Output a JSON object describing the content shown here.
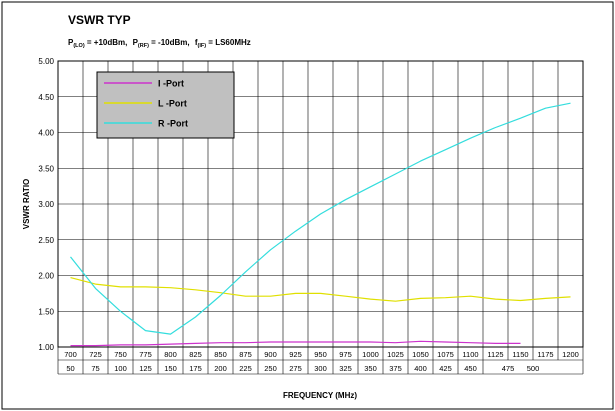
{
  "chart_data": {
    "type": "line",
    "title": "VSWR TYP",
    "subtitle": {
      "p_lo_sym": "P",
      "p_lo_sub": "(LO)",
      "p_lo_val": " = +10dBm,",
      "p_rf_sym": "P",
      "p_rf_sub": "(RF)",
      "p_rf_val": " = -10dBm,",
      "f_if_sym": "f",
      "f_if_sub": "(IF)",
      "f_if_val": " = LS60MHz"
    },
    "xlabel": "FREQUENCY (MHz)",
    "ylabel": "VSWR RATIO",
    "ylim": [
      1.0,
      5.0
    ],
    "yticks": [
      "1.00",
      "1.50",
      "2.00",
      "2.50",
      "3.00",
      "3.50",
      "4.00",
      "4.50",
      "5.00"
    ],
    "x": [
      700,
      725,
      750,
      775,
      800,
      825,
      850,
      875,
      900,
      925,
      950,
      975,
      1000,
      1025,
      1050,
      1075,
      1100,
      1125,
      1150,
      1175,
      1200
    ],
    "x_tick_labels_row1": [
      "700",
      "725",
      "750",
      "775",
      "800",
      "825",
      "850",
      "875",
      "900",
      "925",
      "950",
      "975",
      "1000",
      "1025",
      "1050",
      "1075",
      "1100",
      "1125",
      "1150",
      "1175",
      "1200"
    ],
    "x_tick_labels_row2": [
      "50",
      "75",
      "100",
      "125",
      "150",
      "175",
      "200",
      "225",
      "250",
      "275",
      "300",
      "325",
      "350",
      "375",
      "400",
      "425",
      "450",
      "475",
      "",
      "500",
      ""
    ],
    "grid": true,
    "legend_position": "top-left",
    "series": [
      {
        "name": "I -Port",
        "color": "#cc33cc",
        "x": [
          700,
          725,
          750,
          775,
          800,
          825,
          850,
          875,
          900,
          925,
          950,
          975,
          1000,
          1025,
          1050,
          1075,
          1100,
          1125,
          1150
        ],
        "values": [
          1.02,
          1.02,
          1.03,
          1.03,
          1.04,
          1.05,
          1.06,
          1.06,
          1.07,
          1.07,
          1.07,
          1.07,
          1.07,
          1.06,
          1.08,
          1.07,
          1.06,
          1.05,
          1.05
        ]
      },
      {
        "name": "L -Port",
        "color": "#e0e000",
        "x": [
          700,
          725,
          750,
          775,
          800,
          825,
          850,
          875,
          900,
          925,
          950,
          975,
          1000,
          1025,
          1050,
          1075,
          1100,
          1125,
          1150,
          1175,
          1200
        ],
        "values": [
          1.97,
          1.88,
          1.84,
          1.84,
          1.83,
          1.8,
          1.76,
          1.71,
          1.71,
          1.75,
          1.75,
          1.71,
          1.67,
          1.64,
          1.68,
          1.69,
          1.71,
          1.67,
          1.65,
          1.68,
          1.7
        ]
      },
      {
        "name": "R -Port",
        "color": "#33dddd",
        "x": [
          700,
          725,
          750,
          775,
          800,
          825,
          850,
          875,
          900,
          925,
          950,
          975,
          1000,
          1025,
          1050,
          1075,
          1100,
          1125,
          1150,
          1175,
          1200
        ],
        "values": [
          2.26,
          1.82,
          1.5,
          1.23,
          1.18,
          1.42,
          1.72,
          2.05,
          2.36,
          2.62,
          2.86,
          3.06,
          3.24,
          3.42,
          3.6,
          3.76,
          3.92,
          4.07,
          4.2,
          4.34,
          4.41
        ]
      }
    ]
  }
}
